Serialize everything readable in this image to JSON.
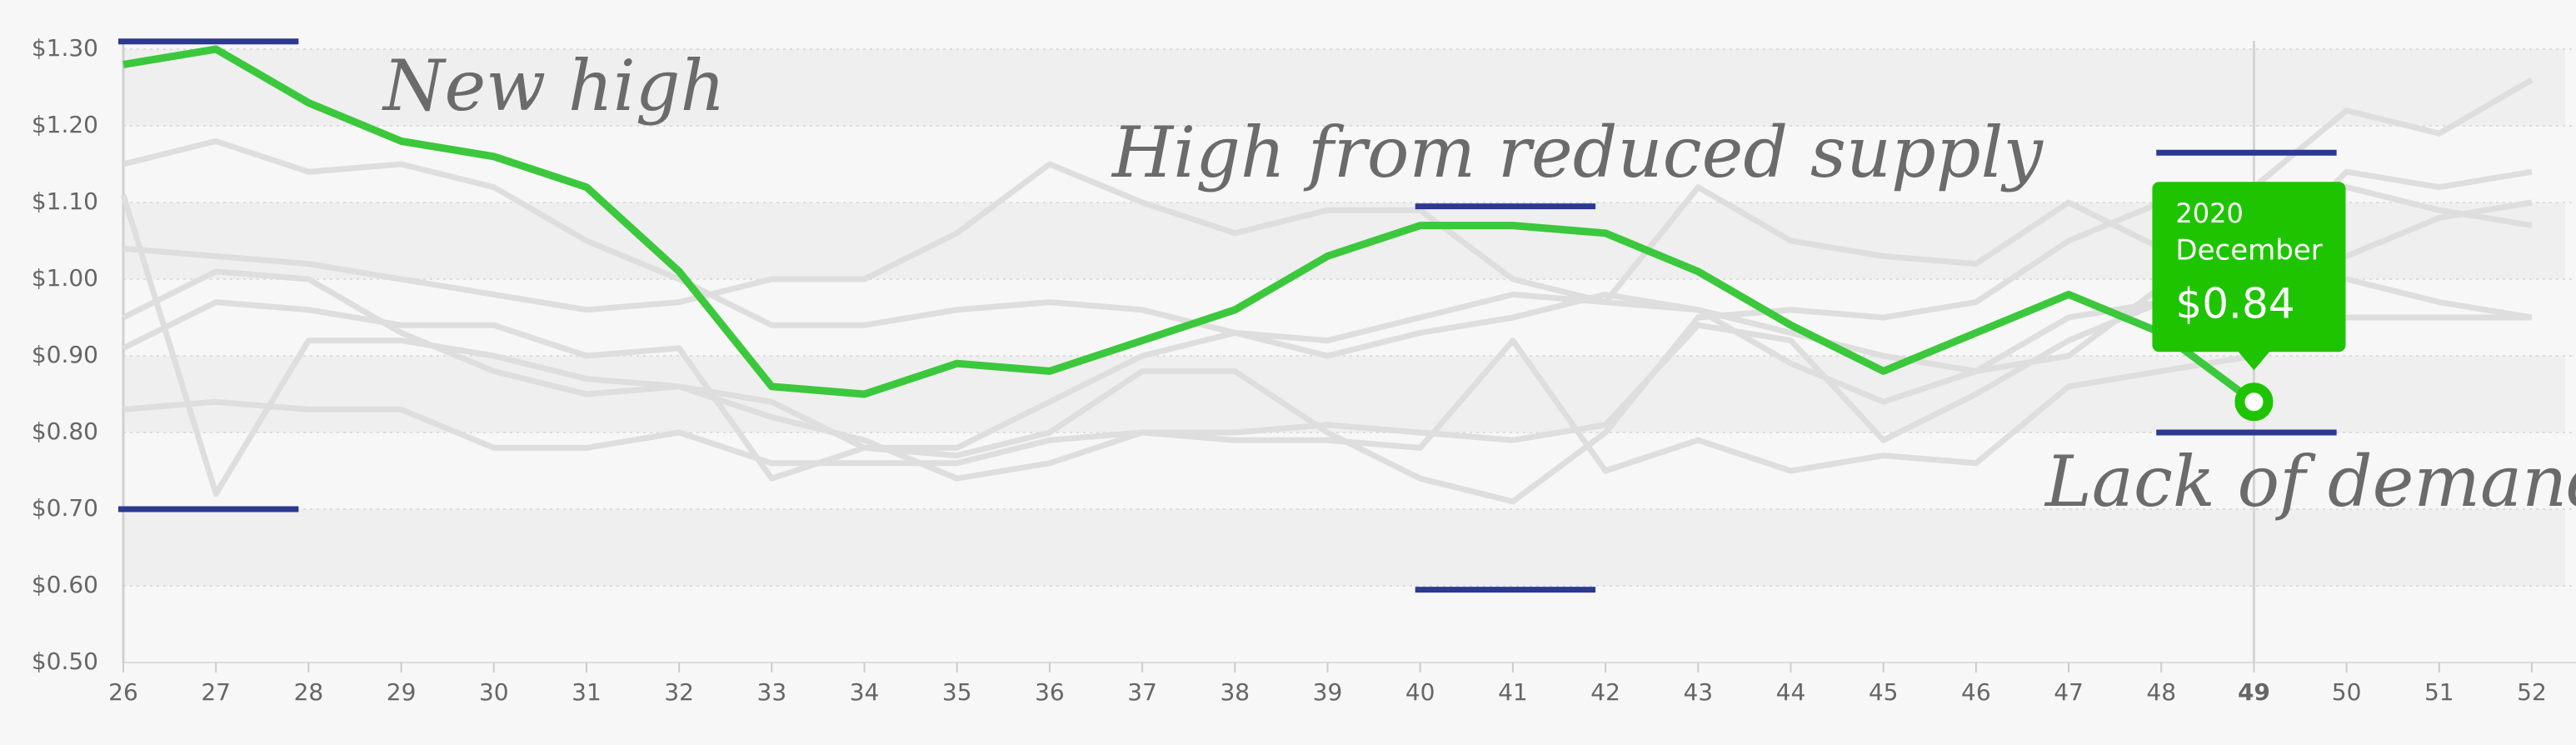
{
  "chart_data": {
    "type": "line",
    "x": [
      26,
      27,
      28,
      29,
      30,
      31,
      32,
      33,
      34,
      35,
      36,
      37,
      38,
      39,
      40,
      41,
      42,
      43,
      44,
      45,
      46,
      47,
      48,
      49,
      50,
      51,
      52
    ],
    "xlim": [
      26,
      52
    ],
    "ylim": [
      0.5,
      1.3
    ],
    "yticks": [
      {
        "value": 0.5,
        "label": "$0.50"
      },
      {
        "value": 0.6,
        "label": "$0.60"
      },
      {
        "value": 0.7,
        "label": "$0.70"
      },
      {
        "value": 0.8,
        "label": "$0.80"
      },
      {
        "value": 0.9,
        "label": "$0.90"
      },
      {
        "value": 1.0,
        "label": "$1.00"
      },
      {
        "value": 1.1,
        "label": "$1.10"
      },
      {
        "value": 1.2,
        "label": "$1.20"
      },
      {
        "value": 1.3,
        "label": "$1.30"
      }
    ],
    "grid": true,
    "series": [
      {
        "color": "#dedede",
        "values": [
          1.15,
          1.18,
          1.14,
          1.15,
          1.12,
          1.05,
          1.0,
          0.94,
          0.94,
          0.96,
          0.97,
          0.96,
          0.93,
          0.92,
          0.95,
          0.98,
          0.97,
          0.96,
          0.93,
          0.9,
          0.88,
          0.95,
          0.97,
          0.98,
          1.03,
          1.08,
          1.1
        ]
      },
      {
        "color": "#dedede",
        "values": [
          1.11,
          0.72,
          0.92,
          0.92,
          0.9,
          0.87,
          0.86,
          0.84,
          0.78,
          0.77,
          0.8,
          0.88,
          0.88,
          0.8,
          0.74,
          0.71,
          0.8,
          0.95,
          0.96,
          0.95,
          0.97,
          1.05,
          1.1,
          1.12,
          1.22,
          1.19,
          1.26
        ]
      },
      {
        "color": "#dedede",
        "values": [
          1.04,
          1.03,
          1.02,
          1.0,
          0.98,
          0.96,
          0.97,
          1.0,
          1.0,
          1.06,
          1.15,
          1.1,
          1.06,
          1.09,
          1.09,
          1.0,
          0.97,
          1.12,
          1.05,
          1.03,
          1.02,
          1.1,
          1.04,
          1.1,
          1.12,
          1.09,
          1.07
        ]
      },
      {
        "color": "#dedede",
        "values": [
          0.95,
          1.01,
          1.0,
          0.93,
          0.88,
          0.85,
          0.86,
          0.82,
          0.79,
          0.74,
          0.76,
          0.8,
          0.8,
          0.81,
          0.8,
          0.79,
          0.81,
          0.94,
          0.92,
          0.79,
          0.85,
          0.92,
          0.97,
          0.99,
          1.0,
          0.97,
          0.95
        ]
      },
      {
        "color": "#dedede",
        "values": [
          0.83,
          0.84,
          0.83,
          0.83,
          0.78,
          0.78,
          0.8,
          0.76,
          0.76,
          0.76,
          0.79,
          0.8,
          0.79,
          0.79,
          0.78,
          0.92,
          0.75,
          0.79,
          0.75,
          0.77,
          0.76,
          0.86,
          0.88,
          0.9,
          0.95,
          0.95,
          0.95
        ]
      },
      {
        "color": "#dedede",
        "values": [
          0.91,
          0.97,
          0.96,
          0.94,
          0.94,
          0.9,
          0.91,
          0.74,
          0.78,
          0.78,
          0.84,
          0.9,
          0.93,
          0.9,
          0.93,
          0.95,
          0.98,
          0.96,
          0.89,
          0.84,
          0.88,
          0.9,
          0.99,
          1.02,
          1.14,
          1.12,
          1.14
        ]
      },
      {
        "color": "#3cc83c",
        "values": [
          1.28,
          1.3,
          1.23,
          1.18,
          1.16,
          1.12,
          1.01,
          0.86,
          0.85,
          0.89,
          0.88,
          0.92,
          0.96,
          1.03,
          1.07,
          1.07,
          1.06,
          1.01,
          0.94,
          0.88,
          0.93,
          0.98,
          0.93,
          0.84,
          null,
          null,
          null
        ]
      }
    ],
    "ranges": [
      {
        "x": [
          26,
          28
        ],
        "high": 1.31,
        "low": 0.7
      },
      {
        "x": [
          40,
          42
        ],
        "high": 1.095,
        "low": 0.595
      },
      {
        "x": [
          48,
          50
        ],
        "high": 1.165,
        "low": 0.8
      }
    ],
    "range_color": "#2b3990",
    "annotations": [
      "New high",
      "High from reduced supply",
      "Lack of demand"
    ],
    "tooltip": {
      "year": "2020",
      "month": "December",
      "value_label": "$0.84"
    }
  }
}
